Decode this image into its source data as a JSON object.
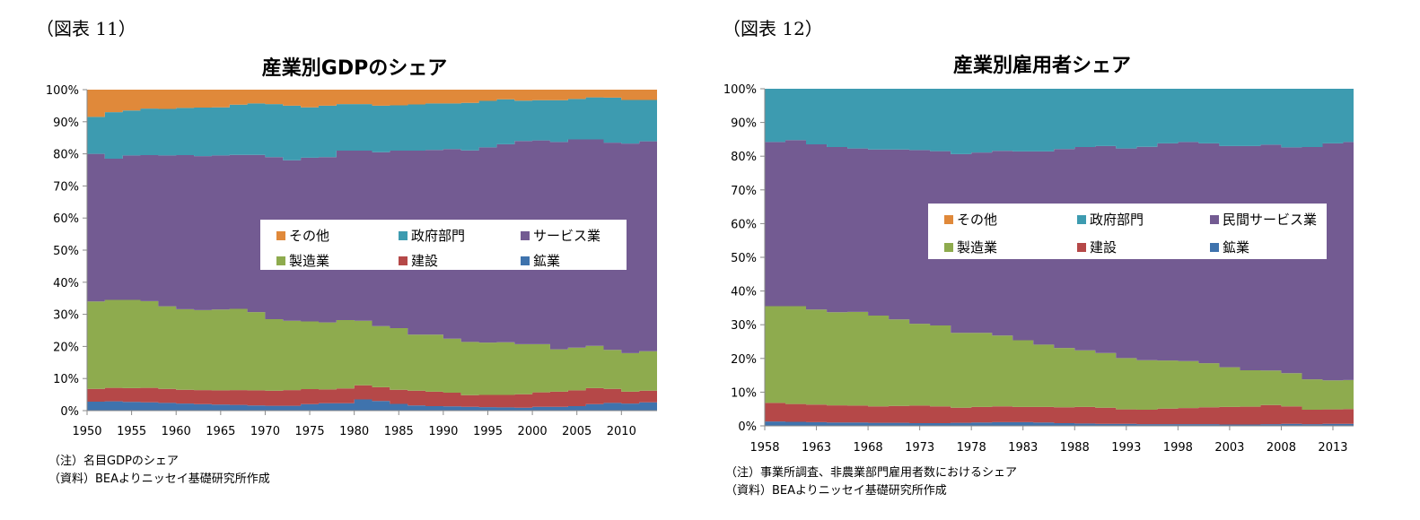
{
  "figure_labels": [
    "（図表 11）",
    "（図表 12）"
  ],
  "colors": {
    "other": "#e0893a",
    "government": "#3d9bb0",
    "services": "#735b92",
    "manufacturing": "#8eab4e",
    "construction": "#b54848",
    "mining": "#3f73ad"
  },
  "chart_data": [
    {
      "type": "area",
      "stacked": true,
      "title": "産業別GDPのシェア",
      "xlabel": "",
      "ylabel": "",
      "x": [
        1950,
        1952,
        1954,
        1956,
        1958,
        1960,
        1962,
        1964,
        1966,
        1968,
        1970,
        1972,
        1974,
        1976,
        1978,
        1980,
        1982,
        1984,
        1986,
        1988,
        1990,
        1992,
        1994,
        1996,
        1998,
        2000,
        2002,
        2004,
        2006,
        2008,
        2010,
        2012,
        2014
      ],
      "x_ticks": [
        "1950",
        "1955",
        "1960",
        "1965",
        "1970",
        "1975",
        "1980",
        "1985",
        "1990",
        "1995",
        "2000",
        "2005",
        "2010"
      ],
      "x_tick_values": [
        1950,
        1955,
        1960,
        1965,
        1970,
        1975,
        1980,
        1985,
        1990,
        1995,
        2000,
        2005,
        2010
      ],
      "x_range": [
        1950,
        2014
      ],
      "y_ticks": [
        "0%",
        "10%",
        "20%",
        "30%",
        "40%",
        "50%",
        "60%",
        "70%",
        "80%",
        "90%",
        "100%"
      ],
      "ylim": [
        0,
        100
      ],
      "legend_placement": "center-right",
      "legend_columns": 3,
      "series": [
        {
          "name": "鉱業",
          "color_key": "mining",
          "values": [
            2.8,
            2.9,
            2.7,
            2.6,
            2.4,
            2.2,
            2.0,
            1.9,
            1.8,
            1.6,
            1.5,
            1.5,
            2.0,
            2.3,
            2.3,
            3.5,
            3.0,
            2.1,
            1.6,
            1.4,
            1.3,
            1.2,
            1.1,
            1.0,
            0.9,
            1.2,
            1.2,
            1.4,
            2.0,
            2.4,
            2.2,
            2.6,
            2.6
          ]
        },
        {
          "name": "建設",
          "color_key": "construction",
          "values": [
            4.0,
            4.2,
            4.3,
            4.5,
            4.4,
            4.3,
            4.4,
            4.4,
            4.6,
            4.7,
            4.7,
            4.9,
            4.7,
            4.3,
            4.6,
            4.4,
            4.3,
            4.4,
            4.6,
            4.5,
            4.3,
            3.6,
            3.8,
            3.9,
            4.2,
            4.5,
            4.7,
            4.9,
            5.0,
            4.4,
            3.7,
            3.6,
            3.8
          ]
        },
        {
          "name": "製造業",
          "color_key": "manufacturing",
          "values": [
            27.2,
            27.4,
            27.5,
            27.0,
            25.7,
            25.1,
            24.9,
            25.2,
            25.3,
            24.4,
            22.3,
            21.6,
            21.1,
            20.9,
            21.3,
            20.1,
            19.0,
            19.2,
            17.5,
            17.8,
            16.8,
            16.6,
            16.3,
            16.4,
            15.6,
            15.0,
            13.2,
            13.3,
            13.2,
            12.1,
            12.0,
            12.3,
            12.2
          ]
        },
        {
          "name": "サービス業",
          "color_key": "services",
          "values": [
            46.0,
            44.0,
            45.0,
            45.5,
            47.0,
            48.0,
            48.0,
            48.0,
            48.0,
            49.0,
            50.5,
            50.0,
            51.0,
            51.5,
            52.8,
            53.0,
            54.2,
            55.3,
            57.3,
            57.5,
            59.1,
            59.7,
            60.8,
            61.7,
            63.3,
            63.5,
            64.6,
            64.9,
            64.3,
            64.6,
            65.3,
            65.4,
            65.4
          ]
        },
        {
          "name": "政府部門",
          "color_key": "government",
          "values": [
            11.5,
            14.5,
            14.0,
            14.5,
            14.5,
            14.7,
            15.1,
            15.0,
            15.6,
            16.0,
            16.5,
            17.0,
            15.7,
            16.0,
            14.5,
            14.5,
            14.5,
            14.1,
            14.4,
            14.5,
            14.2,
            14.8,
            14.5,
            14.0,
            12.6,
            12.5,
            13.0,
            12.6,
            13.1,
            14.0,
            13.6,
            12.9,
            12.7
          ]
        },
        {
          "name": "その他",
          "color_key": "other",
          "values": [
            8.5,
            7.0,
            6.5,
            5.9,
            6.0,
            5.7,
            5.6,
            5.5,
            4.7,
            4.3,
            4.5,
            5.0,
            5.5,
            5.0,
            4.5,
            4.5,
            5.0,
            4.9,
            4.6,
            4.3,
            4.3,
            4.1,
            3.5,
            3.0,
            3.4,
            3.3,
            3.3,
            2.9,
            2.4,
            2.5,
            3.2,
            3.2,
            3.3
          ]
        }
      ],
      "notes": [
        "（注）名目GDPのシェア",
        "（資料）BEAよりニッセイ基礎研究所作成"
      ]
    },
    {
      "type": "area",
      "stacked": true,
      "title": "産業別雇用者シェア",
      "xlabel": "",
      "ylabel": "",
      "x": [
        1958,
        1960,
        1962,
        1964,
        1966,
        1968,
        1970,
        1972,
        1974,
        1976,
        1978,
        1980,
        1982,
        1984,
        1986,
        1988,
        1990,
        1992,
        1994,
        1996,
        1998,
        2000,
        2002,
        2004,
        2006,
        2008,
        2010,
        2012,
        2014
      ],
      "x_ticks": [
        "1958",
        "1963",
        "1968",
        "1973",
        "1978",
        "1983",
        "1988",
        "1993",
        "1998",
        "2003",
        "2008",
        "2013"
      ],
      "x_tick_values": [
        1958,
        1963,
        1968,
        1973,
        1978,
        1983,
        1988,
        1993,
        1998,
        2003,
        2008,
        2013
      ],
      "x_range": [
        1958,
        2015
      ],
      "y_ticks": [
        "0%",
        "10%",
        "20%",
        "30%",
        "40%",
        "50%",
        "60%",
        "70%",
        "80%",
        "90%",
        "100%"
      ],
      "ylim": [
        0,
        100
      ],
      "legend_placement": "center-right",
      "legend_columns": 3,
      "series": [
        {
          "name": "鉱業",
          "color_key": "mining",
          "values": [
            1.3,
            1.2,
            1.1,
            1.0,
            1.0,
            0.9,
            0.9,
            0.8,
            0.8,
            0.9,
            1.0,
            1.1,
            1.1,
            1.0,
            0.8,
            0.7,
            0.6,
            0.6,
            0.5,
            0.5,
            0.5,
            0.5,
            0.4,
            0.4,
            0.5,
            0.6,
            0.5,
            0.6,
            0.6
          ]
        },
        {
          "name": "建設",
          "color_key": "construction",
          "values": [
            5.5,
            5.3,
            5.2,
            5.1,
            5.0,
            4.9,
            5.0,
            5.2,
            5.0,
            4.5,
            4.6,
            4.7,
            4.5,
            4.6,
            4.7,
            4.9,
            4.8,
            4.3,
            4.3,
            4.6,
            4.8,
            5.0,
            5.2,
            5.3,
            5.7,
            5.2,
            4.3,
            4.3,
            4.4
          ]
        },
        {
          "name": "製造業",
          "color_key": "manufacturing",
          "values": [
            28.7,
            29.0,
            28.2,
            27.6,
            27.8,
            26.9,
            25.7,
            24.3,
            24.0,
            22.2,
            22.0,
            21.0,
            19.8,
            18.5,
            17.6,
            16.8,
            16.2,
            15.2,
            14.7,
            14.3,
            13.9,
            13.1,
            11.8,
            10.8,
            10.2,
            9.8,
            9.0,
            8.6,
            8.6
          ]
        },
        {
          "name": "民間サービス業",
          "color_key": "services",
          "values": [
            48.7,
            49.3,
            49.0,
            49.0,
            48.5,
            49.3,
            50.4,
            51.5,
            51.7,
            53.0,
            53.5,
            54.8,
            56.0,
            57.3,
            59.0,
            60.3,
            61.4,
            62.2,
            63.3,
            64.4,
            65.0,
            65.2,
            65.6,
            66.5,
            67.0,
            67.0,
            68.9,
            70.3,
            70.6
          ]
        },
        {
          "name": "政府部門",
          "color_key": "government",
          "values": [
            15.8,
            15.2,
            16.5,
            17.3,
            17.7,
            18.0,
            18.0,
            18.2,
            18.5,
            19.4,
            18.9,
            18.4,
            18.6,
            18.6,
            17.9,
            17.3,
            17.0,
            17.7,
            17.2,
            16.2,
            15.8,
            16.2,
            17.0,
            17.0,
            16.6,
            17.4,
            17.3,
            16.2,
            15.8
          ]
        },
        {
          "name": "その他",
          "color_key": "other",
          "values": [
            0,
            0,
            0,
            0,
            0,
            0,
            0,
            0,
            0,
            0,
            0,
            0,
            0,
            0,
            0,
            0,
            0,
            0,
            0,
            0,
            0,
            0,
            0,
            0,
            0,
            0,
            0,
            0,
            0
          ]
        }
      ],
      "notes": [
        "（注）事業所調査、非農業部門雇用者数におけるシェア",
        "（資料）BEAよりニッセイ基礎研究所作成"
      ]
    }
  ]
}
